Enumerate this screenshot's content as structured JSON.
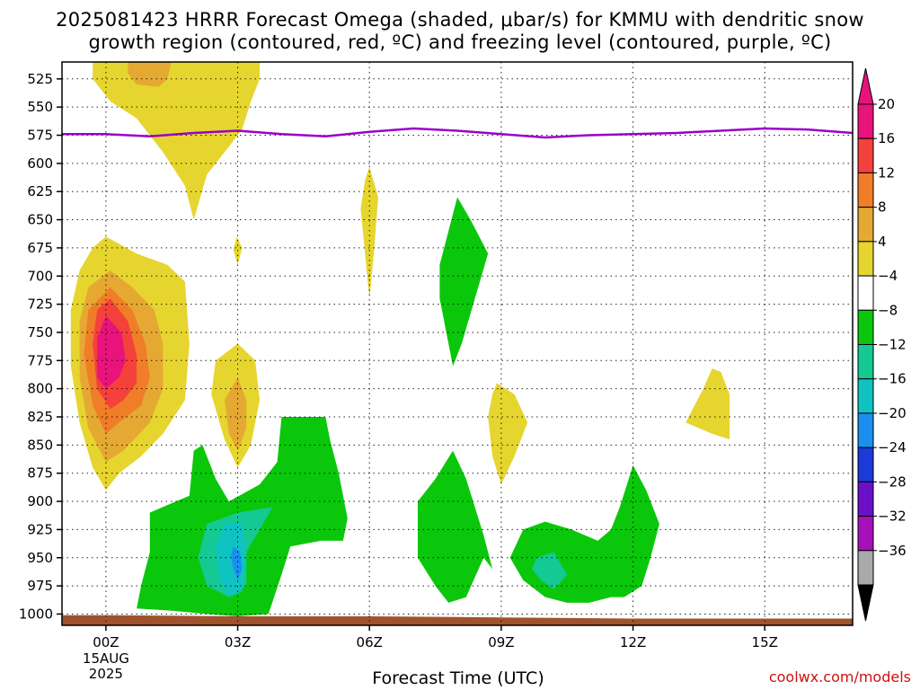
{
  "title_line1": "2025081423 HRRR Forecast Omega (shaded, μbar/s) for KMMU with dendritic snow",
  "title_line2": "growth region (contoured, red, ºC) and freezing level (contoured, purple, ºC)",
  "credit": "coolwx.com/models",
  "chart_data": {
    "type": "filled-contour",
    "title": "2025081423 HRRR Forecast Omega (shaded, μbar/s) for KMMU with dendritic snow growth region (contoured, red, ºC) and freezing level (contoured, purple, ºC)",
    "xlabel": "Forecast Time (UTC)",
    "ylabel": "",
    "x_ticks": [
      "00Z",
      "03Z",
      "06Z",
      "09Z",
      "12Z",
      "15Z"
    ],
    "x_tick_hours": [
      0,
      3,
      6,
      9,
      12,
      15
    ],
    "x_date_label": [
      "15AUG",
      "2025"
    ],
    "xlim_hours": [
      -1,
      17
    ],
    "y_ticks": [
      525,
      550,
      575,
      600,
      625,
      650,
      675,
      700,
      725,
      750,
      775,
      800,
      825,
      850,
      875,
      900,
      925,
      950,
      975,
      1000
    ],
    "ylim_hPa": [
      1010,
      510
    ],
    "grid": "dotted",
    "colorbar": {
      "labels": [
        "20",
        "16",
        "12",
        "8",
        "4",
        "−4",
        "−8",
        "−12",
        "−16",
        "−20",
        "−24",
        "−28",
        "−32",
        "−36"
      ],
      "levels": [
        20,
        16,
        12,
        8,
        4,
        -4,
        -8,
        -12,
        -16,
        -20,
        -24,
        -28,
        -32,
        -36
      ],
      "bands": [
        {
          "lo": 20,
          "hi": 24,
          "color": "#e8137b"
        },
        {
          "lo": 16,
          "hi": 20,
          "color": "#f4413c"
        },
        {
          "lo": 12,
          "hi": 16,
          "color": "#f07d28"
        },
        {
          "lo": 8,
          "hi": 12,
          "color": "#e5a933"
        },
        {
          "lo": 4,
          "hi": 8,
          "color": "#e6d52e"
        },
        {
          "lo": -4,
          "hi": 4,
          "color": "#ffffff"
        },
        {
          "lo": -8,
          "hi": -4,
          "color": "#0bc70b"
        },
        {
          "lo": -12,
          "hi": -8,
          "color": "#14c993"
        },
        {
          "lo": -16,
          "hi": -12,
          "color": "#10c3c3"
        },
        {
          "lo": -20,
          "hi": -16,
          "color": "#1a8fef"
        },
        {
          "lo": -24,
          "hi": -20,
          "color": "#1a3bd8"
        },
        {
          "lo": -28,
          "hi": -24,
          "color": "#6b10c8"
        },
        {
          "lo": -32,
          "hi": -28,
          "color": "#a710b8"
        },
        {
          "lo": -36,
          "hi": -32,
          "color": "#a9a9a9"
        }
      ],
      "top_arrow_color": "#e8137b",
      "bottom_arrow_color": "#000000"
    },
    "freezing_level": {
      "color": "#9b00c8",
      "points": [
        [
          -1,
          574
        ],
        [
          0,
          574
        ],
        [
          1,
          576
        ],
        [
          2,
          573
        ],
        [
          3,
          571
        ],
        [
          4,
          574
        ],
        [
          5,
          576
        ],
        [
          6,
          572
        ],
        [
          7,
          569
        ],
        [
          8,
          571
        ],
        [
          9,
          574
        ],
        [
          10,
          577
        ],
        [
          11,
          575
        ],
        [
          12,
          574
        ],
        [
          13,
          573
        ],
        [
          14,
          571
        ],
        [
          15,
          569
        ],
        [
          16,
          570
        ],
        [
          17,
          573
        ]
      ]
    },
    "terrain": {
      "color": "#a0522d",
      "top_hPa": [
        [
          -1,
          1001
        ],
        [
          0,
          1001
        ],
        [
          3,
          1002
        ],
        [
          6,
          1002
        ],
        [
          9,
          1003
        ],
        [
          12,
          1004
        ],
        [
          17,
          1004
        ]
      ]
    },
    "shaded_regions": [
      {
        "value": 4,
        "color": "#e6d52e",
        "points": [
          [
            -0.3,
            509
          ],
          [
            3.5,
            509
          ],
          [
            3.5,
            525
          ],
          [
            3.3,
            545
          ],
          [
            3.1,
            570
          ],
          [
            2.8,
            585
          ],
          [
            2.3,
            610
          ],
          [
            2.0,
            650
          ],
          [
            1.8,
            620
          ],
          [
            1.3,
            590
          ],
          [
            0.7,
            560
          ],
          [
            0.1,
            545
          ],
          [
            -0.3,
            525
          ]
        ]
      },
      {
        "value": 8,
        "color": "#e5a933",
        "points": [
          [
            0.5,
            509
          ],
          [
            1.5,
            509
          ],
          [
            1.4,
            525
          ],
          [
            1.2,
            532
          ],
          [
            0.7,
            530
          ],
          [
            0.5,
            520
          ]
        ]
      },
      {
        "value": 4,
        "color": "#e6d52e",
        "points": [
          [
            0.0,
            665
          ],
          [
            0.7,
            680
          ],
          [
            1.4,
            690
          ],
          [
            1.8,
            705
          ],
          [
            1.9,
            760
          ],
          [
            1.8,
            810
          ],
          [
            1.3,
            840
          ],
          [
            0.8,
            860
          ],
          [
            0.3,
            875
          ],
          [
            0.0,
            890
          ],
          [
            -0.3,
            870
          ],
          [
            -0.6,
            830
          ],
          [
            -0.8,
            780
          ],
          [
            -0.8,
            730
          ],
          [
            -0.6,
            695
          ],
          [
            -0.3,
            675
          ]
        ]
      },
      {
        "value": 8,
        "color": "#e5a933",
        "points": [
          [
            0.1,
            695
          ],
          [
            0.6,
            710
          ],
          [
            1.1,
            730
          ],
          [
            1.3,
            760
          ],
          [
            1.3,
            800
          ],
          [
            1.0,
            830
          ],
          [
            0.4,
            855
          ],
          [
            0.0,
            865
          ],
          [
            -0.4,
            835
          ],
          [
            -0.6,
            790
          ],
          [
            -0.6,
            740
          ],
          [
            -0.4,
            710
          ]
        ]
      },
      {
        "value": 12,
        "color": "#f07d28",
        "points": [
          [
            0.1,
            710
          ],
          [
            0.6,
            730
          ],
          [
            0.9,
            760
          ],
          [
            1.0,
            790
          ],
          [
            0.8,
            815
          ],
          [
            0.3,
            830
          ],
          [
            0.0,
            840
          ],
          [
            -0.3,
            815
          ],
          [
            -0.5,
            770
          ],
          [
            -0.4,
            730
          ]
        ]
      },
      {
        "value": 16,
        "color": "#f4413c",
        "points": [
          [
            0.1,
            720
          ],
          [
            0.5,
            740
          ],
          [
            0.7,
            770
          ],
          [
            0.7,
            795
          ],
          [
            0.4,
            810
          ],
          [
            0.1,
            818
          ],
          [
            -0.2,
            800
          ],
          [
            -0.3,
            760
          ],
          [
            -0.2,
            730
          ]
        ]
      },
      {
        "value": 20,
        "color": "#e8137b",
        "points": [
          [
            0.0,
            735
          ],
          [
            0.35,
            750
          ],
          [
            0.45,
            775
          ],
          [
            0.3,
            790
          ],
          [
            0.0,
            800
          ],
          [
            -0.2,
            790
          ],
          [
            -0.2,
            755
          ]
        ]
      },
      {
        "value": 4,
        "color": "#e6d52e",
        "points": [
          [
            3.0,
            760
          ],
          [
            3.4,
            775
          ],
          [
            3.5,
            810
          ],
          [
            3.3,
            850
          ],
          [
            3.0,
            870
          ],
          [
            2.7,
            845
          ],
          [
            2.4,
            805
          ],
          [
            2.5,
            775
          ]
        ]
      },
      {
        "value": 8,
        "color": "#e5a933",
        "points": [
          [
            3.0,
            790
          ],
          [
            3.2,
            810
          ],
          [
            3.2,
            835
          ],
          [
            3.0,
            855
          ],
          [
            2.8,
            840
          ],
          [
            2.7,
            810
          ]
        ]
      },
      {
        "value": 4,
        "color": "#e6d52e",
        "points": [
          [
            2.98,
            665
          ],
          [
            3.1,
            675
          ],
          [
            3.0,
            690
          ],
          [
            2.9,
            677
          ]
        ]
      },
      {
        "value": 4,
        "color": "#e6d52e",
        "points": [
          [
            6.0,
            603
          ],
          [
            6.2,
            630
          ],
          [
            6.1,
            680
          ],
          [
            6.0,
            720
          ],
          [
            5.9,
            680
          ],
          [
            5.8,
            640
          ],
          [
            5.9,
            615
          ]
        ]
      },
      {
        "value": 4,
        "color": "#e6d52e",
        "points": [
          [
            8.9,
            795
          ],
          [
            9.3,
            805
          ],
          [
            9.6,
            830
          ],
          [
            9.3,
            860
          ],
          [
            9.0,
            885
          ],
          [
            8.8,
            860
          ],
          [
            8.7,
            825
          ],
          [
            8.8,
            805
          ]
        ]
      },
      {
        "value": 4,
        "color": "#e6d52e",
        "points": [
          [
            13.8,
            782
          ],
          [
            14.0,
            785
          ],
          [
            14.2,
            805
          ],
          [
            14.2,
            845
          ],
          [
            13.8,
            840
          ],
          [
            13.2,
            830
          ],
          [
            13.4,
            815
          ],
          [
            13.6,
            800
          ]
        ]
      },
      {
        "value": -4,
        "color": "#0bc70b",
        "points": [
          [
            8.0,
            630
          ],
          [
            8.3,
            650
          ],
          [
            8.7,
            680
          ],
          [
            8.4,
            720
          ],
          [
            8.1,
            760
          ],
          [
            7.9,
            780
          ],
          [
            7.7,
            740
          ],
          [
            7.6,
            720
          ],
          [
            7.6,
            690
          ],
          [
            7.8,
            660
          ]
        ]
      },
      {
        "value": -4,
        "color": "#0bc70b",
        "points": [
          [
            2.0,
            855
          ],
          [
            1.9,
            895
          ],
          [
            1.3,
            905
          ],
          [
            1.0,
            910
          ],
          [
            1.0,
            945
          ],
          [
            0.8,
            975
          ],
          [
            0.7,
            995
          ],
          [
            1.5,
            997
          ],
          [
            2.3,
            1000
          ],
          [
            3.0,
            1002
          ],
          [
            3.7,
            1000
          ],
          [
            4.0,
            965
          ],
          [
            4.2,
            940
          ],
          [
            4.9,
            935
          ],
          [
            5.4,
            935
          ],
          [
            5.5,
            915
          ],
          [
            5.3,
            875
          ],
          [
            5.1,
            845
          ],
          [
            5.0,
            825
          ],
          [
            4.0,
            825
          ],
          [
            3.9,
            865
          ],
          [
            3.5,
            885
          ],
          [
            2.8,
            900
          ],
          [
            2.5,
            880
          ],
          [
            2.3,
            860
          ],
          [
            2.2,
            850
          ]
        ]
      },
      {
        "value": -8,
        "color": "#14c993",
        "points": [
          [
            2.3,
            920
          ],
          [
            3.0,
            910
          ],
          [
            3.8,
            905
          ],
          [
            3.5,
            925
          ],
          [
            3.2,
            945
          ],
          [
            3.2,
            975
          ],
          [
            2.8,
            985
          ],
          [
            2.3,
            975
          ],
          [
            2.1,
            950
          ]
        ]
      },
      {
        "value": -12,
        "color": "#10c3c3",
        "points": [
          [
            2.7,
            920
          ],
          [
            3.1,
            920
          ],
          [
            3.2,
            945
          ],
          [
            3.1,
            980
          ],
          [
            2.8,
            985
          ],
          [
            2.6,
            970
          ],
          [
            2.5,
            940
          ]
        ]
      },
      {
        "value": -16,
        "color": "#1a8fef",
        "points": [
          [
            2.9,
            940
          ],
          [
            3.05,
            945
          ],
          [
            3.1,
            960
          ],
          [
            3.0,
            970
          ],
          [
            2.9,
            960
          ],
          [
            2.85,
            948
          ]
        ]
      },
      {
        "value": -4,
        "color": "#0bc70b",
        "points": [
          [
            7.9,
            855
          ],
          [
            8.2,
            880
          ],
          [
            8.6,
            930
          ],
          [
            8.8,
            960
          ],
          [
            8.6,
            950
          ],
          [
            8.2,
            985
          ],
          [
            7.8,
            990
          ],
          [
            7.5,
            975
          ],
          [
            7.1,
            950
          ],
          [
            7.1,
            900
          ],
          [
            7.5,
            880
          ]
        ]
      },
      {
        "value": -4,
        "color": "#0bc70b",
        "points": [
          [
            12.0,
            868
          ],
          [
            12.3,
            890
          ],
          [
            12.6,
            920
          ],
          [
            12.4,
            950
          ],
          [
            12.2,
            975
          ],
          [
            11.8,
            985
          ],
          [
            11.5,
            985
          ],
          [
            11.0,
            990
          ],
          [
            10.5,
            990
          ],
          [
            10.0,
            985
          ],
          [
            9.5,
            970
          ],
          [
            9.2,
            950
          ],
          [
            9.5,
            925
          ],
          [
            10.0,
            918
          ],
          [
            10.6,
            925
          ],
          [
            11.2,
            935
          ],
          [
            11.5,
            925
          ],
          [
            11.7,
            905
          ]
        ]
      },
      {
        "value": -8,
        "color": "#14c993",
        "points": [
          [
            9.8,
            950
          ],
          [
            10.2,
            945
          ],
          [
            10.5,
            965
          ],
          [
            10.2,
            978
          ],
          [
            9.9,
            970
          ],
          [
            9.7,
            960
          ]
        ]
      }
    ]
  }
}
